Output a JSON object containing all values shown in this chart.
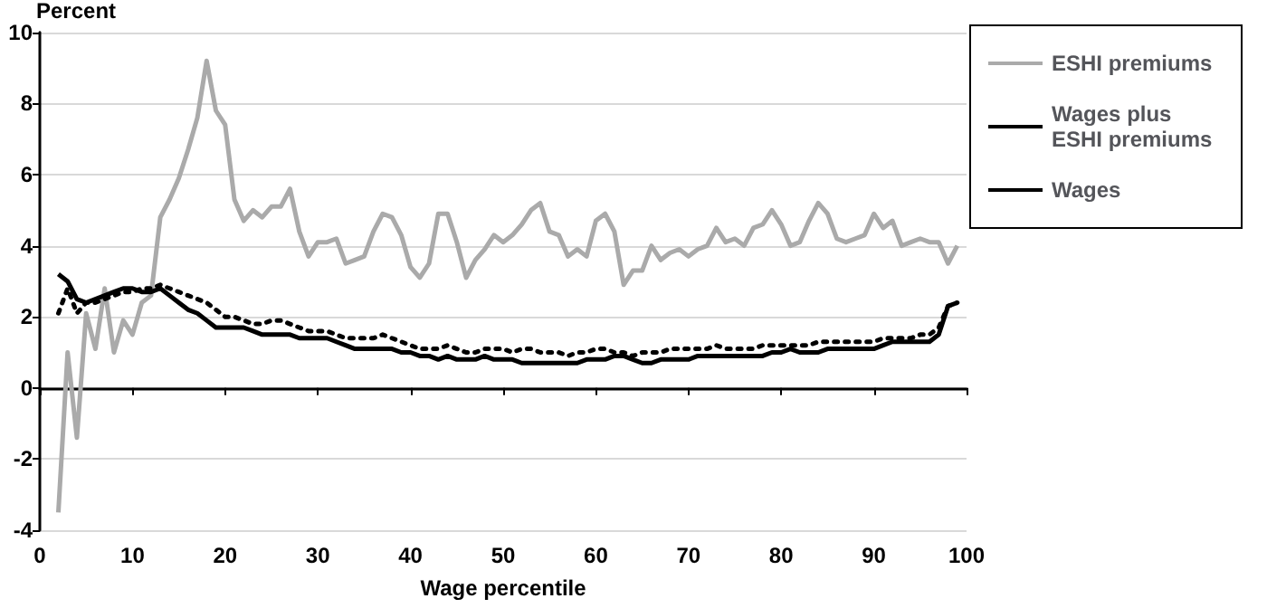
{
  "chart_data": {
    "type": "line",
    "xlabel": "Wage percentile",
    "ylabel": "Percent",
    "xlim": [
      0,
      100
    ],
    "xticks": [
      0,
      10,
      20,
      30,
      40,
      50,
      60,
      70,
      80,
      90,
      100
    ],
    "ylim": [
      -4,
      10
    ],
    "yticks": [
      -4,
      -2,
      0,
      2,
      4,
      6,
      8,
      10
    ],
    "grid": "y",
    "legend": "top right",
    "marker": "none",
    "x": [
      2,
      3,
      4,
      5,
      6,
      7,
      8,
      9,
      10,
      11,
      12,
      13,
      14,
      15,
      16,
      17,
      18,
      19,
      20,
      21,
      22,
      23,
      24,
      25,
      26,
      27,
      28,
      29,
      30,
      31,
      32,
      33,
      34,
      35,
      36,
      37,
      38,
      39,
      40,
      41,
      42,
      43,
      44,
      45,
      46,
      47,
      48,
      49,
      50,
      51,
      52,
      53,
      54,
      55,
      56,
      57,
      58,
      59,
      60,
      61,
      62,
      63,
      64,
      65,
      66,
      67,
      68,
      69,
      70,
      71,
      72,
      73,
      74,
      75,
      76,
      77,
      78,
      79,
      80,
      81,
      82,
      83,
      84,
      85,
      86,
      87,
      88,
      89,
      90,
      91,
      92,
      93,
      94,
      95,
      96,
      97,
      98,
      99
    ],
    "series": [
      {
        "name": "ESHI premiums",
        "color": "#aaaaaa",
        "line_style": "solid",
        "values": [
          -3.5,
          1.0,
          -1.4,
          2.1,
          1.1,
          2.8,
          1.0,
          1.9,
          1.5,
          2.4,
          2.6,
          4.8,
          5.3,
          5.9,
          6.7,
          7.6,
          9.2,
          7.8,
          7.4,
          5.3,
          4.7,
          5.0,
          4.8,
          5.1,
          5.1,
          5.6,
          4.4,
          3.7,
          4.1,
          4.1,
          4.2,
          3.5,
          3.6,
          3.7,
          4.4,
          4.9,
          4.8,
          4.3,
          3.4,
          3.1,
          3.5,
          4.9,
          4.9,
          4.1,
          3.1,
          3.6,
          3.9,
          4.3,
          4.1,
          4.3,
          4.6,
          5.0,
          5.2,
          4.4,
          4.3,
          3.7,
          3.9,
          3.7,
          4.7,
          4.9,
          4.4,
          2.9,
          3.3,
          3.3,
          4.0,
          3.6,
          3.8,
          3.9,
          3.7,
          3.9,
          4.0,
          4.5,
          4.1,
          4.2,
          4.0,
          4.5,
          4.6,
          5.0,
          4.6,
          4.0,
          4.1,
          4.7,
          5.2,
          4.9,
          4.2,
          4.1,
          4.2,
          4.3,
          4.9,
          4.5,
          4.7,
          4.0,
          4.1,
          4.2,
          4.1,
          4.1,
          3.5,
          4.0
        ]
      },
      {
        "name": "Wages plus ESHI premiums",
        "color": "#000000",
        "line_style": "dotted",
        "values": [
          2.1,
          2.8,
          2.1,
          2.4,
          2.4,
          2.5,
          2.6,
          2.7,
          2.7,
          2.8,
          2.8,
          2.9,
          2.8,
          2.7,
          2.6,
          2.5,
          2.4,
          2.2,
          2.0,
          2.0,
          1.9,
          1.8,
          1.8,
          1.9,
          1.9,
          1.8,
          1.7,
          1.6,
          1.6,
          1.6,
          1.5,
          1.4,
          1.4,
          1.4,
          1.4,
          1.5,
          1.4,
          1.3,
          1.2,
          1.1,
          1.1,
          1.1,
          1.2,
          1.1,
          1.0,
          1.0,
          1.1,
          1.1,
          1.1,
          1.0,
          1.1,
          1.1,
          1.0,
          1.0,
          1.0,
          0.9,
          1.0,
          1.0,
          1.1,
          1.1,
          1.0,
          1.0,
          0.9,
          1.0,
          1.0,
          1.0,
          1.1,
          1.1,
          1.1,
          1.1,
          1.1,
          1.2,
          1.1,
          1.1,
          1.1,
          1.1,
          1.2,
          1.2,
          1.2,
          1.2,
          1.2,
          1.2,
          1.3,
          1.3,
          1.3,
          1.3,
          1.3,
          1.3,
          1.3,
          1.4,
          1.4,
          1.4,
          1.4,
          1.5,
          1.5,
          1.7,
          2.3,
          2.4
        ]
      },
      {
        "name": "Wages",
        "color": "#000000",
        "line_style": "solid",
        "values": [
          3.2,
          3.0,
          2.5,
          2.4,
          2.5,
          2.6,
          2.7,
          2.8,
          2.8,
          2.7,
          2.7,
          2.8,
          2.6,
          2.4,
          2.2,
          2.1,
          1.9,
          1.7,
          1.7,
          1.7,
          1.7,
          1.6,
          1.5,
          1.5,
          1.5,
          1.5,
          1.4,
          1.4,
          1.4,
          1.4,
          1.3,
          1.2,
          1.1,
          1.1,
          1.1,
          1.1,
          1.1,
          1.0,
          1.0,
          0.9,
          0.9,
          0.8,
          0.9,
          0.8,
          0.8,
          0.8,
          0.9,
          0.8,
          0.8,
          0.8,
          0.7,
          0.7,
          0.7,
          0.7,
          0.7,
          0.7,
          0.7,
          0.8,
          0.8,
          0.8,
          0.9,
          0.9,
          0.8,
          0.7,
          0.7,
          0.8,
          0.8,
          0.8,
          0.8,
          0.9,
          0.9,
          0.9,
          0.9,
          0.9,
          0.9,
          0.9,
          0.9,
          1.0,
          1.0,
          1.1,
          1.0,
          1.0,
          1.0,
          1.1,
          1.1,
          1.1,
          1.1,
          1.1,
          1.1,
          1.2,
          1.3,
          1.3,
          1.3,
          1.3,
          1.3,
          1.5,
          2.3,
          2.4
        ]
      }
    ]
  }
}
